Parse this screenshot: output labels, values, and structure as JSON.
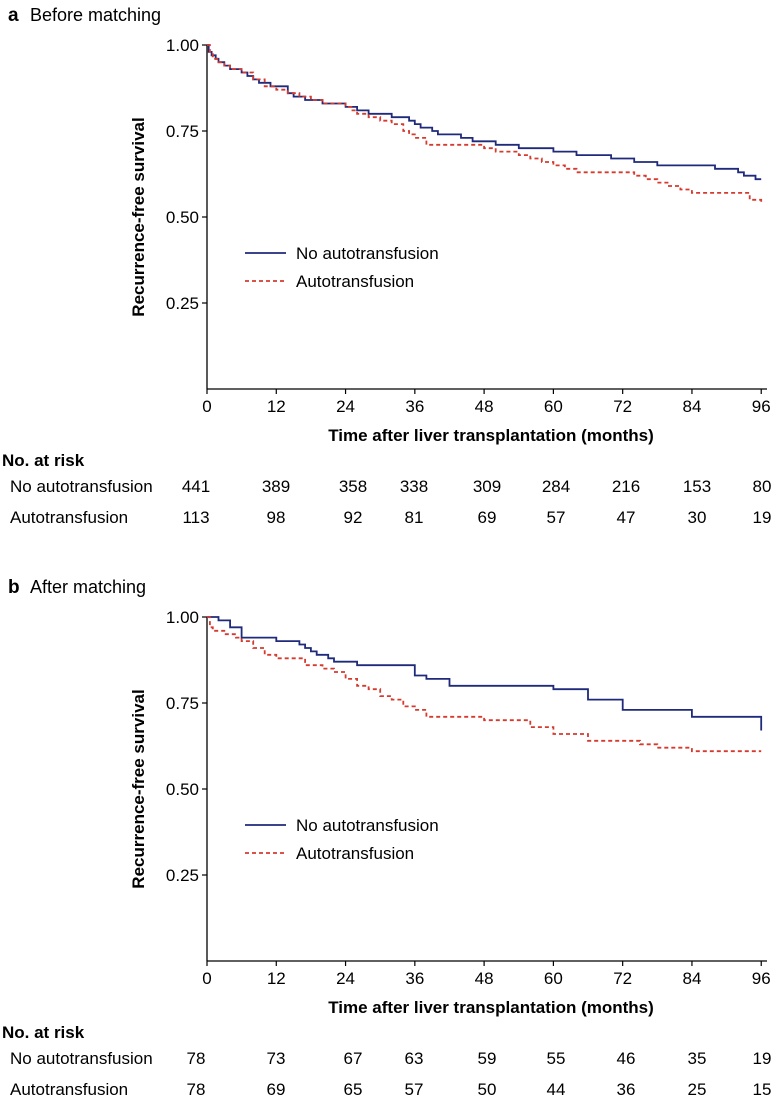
{
  "colors": {
    "no_autotransfusion": "#1f2a7a",
    "autotransfusion": "#d63a2f",
    "axis": "#000000"
  },
  "chart_data": [
    {
      "type": "line",
      "panel_letter": "a",
      "title": "Before matching",
      "xlabel": "Time after liver transplantation (months)",
      "ylabel": "Recurrence-free survival",
      "xlim": [
        0,
        97
      ],
      "ylim": [
        0,
        1.0
      ],
      "xticks": [
        0,
        12,
        24,
        36,
        48,
        60,
        72,
        84,
        96
      ],
      "yticks": [
        0.25,
        0.5,
        0.75,
        1.0
      ],
      "ytick_labels": [
        "0.25",
        "0.50",
        "0.75",
        "1.00"
      ],
      "grid": false,
      "legend_position": "middle-left",
      "series": [
        {
          "name": "No autotransfusion",
          "style": "solid",
          "x": [
            0,
            0.3,
            0.8,
            1.5,
            2,
            3,
            4,
            5,
            6,
            7,
            8,
            9,
            10,
            11,
            12,
            14,
            15,
            17,
            18,
            20,
            22,
            24,
            26,
            28,
            30,
            32,
            34,
            35,
            36,
            37,
            38,
            39,
            40,
            41,
            42,
            44,
            46,
            48,
            50,
            52,
            54,
            56,
            58,
            60,
            62,
            64,
            66,
            68,
            70,
            72,
            74,
            76,
            78,
            80,
            82,
            84,
            86,
            88,
            90,
            92,
            93,
            94,
            95,
            96
          ],
          "y": [
            1.0,
            0.98,
            0.97,
            0.96,
            0.95,
            0.94,
            0.93,
            0.93,
            0.92,
            0.91,
            0.9,
            0.89,
            0.89,
            0.88,
            0.88,
            0.86,
            0.85,
            0.84,
            0.84,
            0.83,
            0.83,
            0.82,
            0.81,
            0.8,
            0.8,
            0.79,
            0.79,
            0.78,
            0.77,
            0.76,
            0.76,
            0.75,
            0.74,
            0.74,
            0.74,
            0.73,
            0.72,
            0.72,
            0.71,
            0.71,
            0.7,
            0.7,
            0.7,
            0.69,
            0.69,
            0.68,
            0.68,
            0.68,
            0.67,
            0.67,
            0.66,
            0.66,
            0.65,
            0.65,
            0.65,
            0.65,
            0.65,
            0.64,
            0.64,
            0.63,
            0.62,
            0.62,
            0.61,
            0.61
          ]
        },
        {
          "name": "Autotransfusion",
          "style": "dashed",
          "x": [
            0,
            0.5,
            1,
            2,
            3,
            4,
            6,
            8,
            10,
            12,
            14,
            16,
            18,
            20,
            22,
            24,
            25,
            26,
            28,
            30,
            32,
            34,
            35,
            36,
            38,
            40,
            42,
            44,
            46,
            48,
            50,
            52,
            54,
            56,
            58,
            60,
            62,
            64,
            66,
            68,
            70,
            72,
            74,
            76,
            78,
            80,
            82,
            84,
            86,
            88,
            90,
            92,
            94,
            96
          ],
          "y": [
            1.0,
            0.98,
            0.96,
            0.95,
            0.94,
            0.93,
            0.92,
            0.9,
            0.88,
            0.87,
            0.86,
            0.85,
            0.84,
            0.83,
            0.83,
            0.82,
            0.81,
            0.8,
            0.79,
            0.78,
            0.77,
            0.75,
            0.74,
            0.73,
            0.71,
            0.71,
            0.71,
            0.71,
            0.71,
            0.7,
            0.69,
            0.69,
            0.68,
            0.67,
            0.66,
            0.65,
            0.64,
            0.63,
            0.63,
            0.63,
            0.63,
            0.63,
            0.62,
            0.61,
            0.6,
            0.59,
            0.58,
            0.57,
            0.57,
            0.57,
            0.57,
            0.57,
            0.55,
            0.54
          ]
        }
      ],
      "risk_table": {
        "title": "No. at risk",
        "rows": [
          {
            "label": "No autotransfusion",
            "values": [
              "441",
              "389",
              "358",
              "338",
              "309",
              "284",
              "216",
              "153",
              "80"
            ]
          },
          {
            "label": "Autotransfusion",
            "values": [
              "113",
              "98",
              "92",
              "81",
              "69",
              "57",
              "47",
              "30",
              "19"
            ]
          }
        ]
      }
    },
    {
      "type": "line",
      "panel_letter": "b",
      "title": "After matching",
      "xlabel": "Time after liver transplantation (months)",
      "ylabel": "Recurrence-free survival",
      "xlim": [
        0,
        97
      ],
      "ylim": [
        0,
        1.0
      ],
      "xticks": [
        0,
        12,
        24,
        36,
        48,
        60,
        72,
        84,
        96
      ],
      "yticks": [
        0.25,
        0.5,
        0.75,
        1.0
      ],
      "ytick_labels": [
        "0.25",
        "0.50",
        "0.75",
        "1.00"
      ],
      "grid": false,
      "legend_position": "middle-left",
      "series": [
        {
          "name": "No autotransfusion",
          "style": "solid",
          "x": [
            0,
            1,
            2,
            4,
            6,
            12,
            16,
            17,
            18,
            19,
            21,
            22,
            26,
            28,
            34,
            36,
            38,
            42,
            48,
            54,
            60,
            62,
            66,
            70,
            72,
            76,
            84,
            90,
            96
          ],
          "y": [
            1.0,
            1.0,
            0.99,
            0.97,
            0.94,
            0.93,
            0.92,
            0.91,
            0.9,
            0.89,
            0.88,
            0.87,
            0.86,
            0.86,
            0.86,
            0.83,
            0.82,
            0.8,
            0.8,
            0.8,
            0.79,
            0.79,
            0.76,
            0.76,
            0.73,
            0.73,
            0.71,
            0.71,
            0.67
          ]
        },
        {
          "name": "Autotransfusion",
          "style": "dashed",
          "x": [
            0,
            0.5,
            1,
            3,
            5,
            6,
            8,
            10,
            12,
            16,
            17,
            20,
            22,
            24,
            26,
            28,
            30,
            32,
            34,
            36,
            38,
            40,
            42,
            48,
            56,
            60,
            66,
            70,
            75,
            78,
            84,
            90,
            96
          ],
          "y": [
            1.0,
            0.97,
            0.96,
            0.95,
            0.94,
            0.93,
            0.91,
            0.89,
            0.88,
            0.88,
            0.86,
            0.85,
            0.84,
            0.82,
            0.8,
            0.79,
            0.77,
            0.76,
            0.74,
            0.73,
            0.71,
            0.71,
            0.71,
            0.7,
            0.68,
            0.66,
            0.64,
            0.64,
            0.63,
            0.62,
            0.61,
            0.61,
            0.61
          ]
        }
      ],
      "risk_table": {
        "title": "No. at risk",
        "rows": [
          {
            "label": "No autotransfusion",
            "values": [
              "78",
              "73",
              "67",
              "63",
              "59",
              "55",
              "46",
              "35",
              "19"
            ]
          },
          {
            "label": "Autotransfusion",
            "values": [
              "78",
              "69",
              "65",
              "57",
              "50",
              "44",
              "36",
              "25",
              "15"
            ]
          }
        ]
      }
    }
  ]
}
